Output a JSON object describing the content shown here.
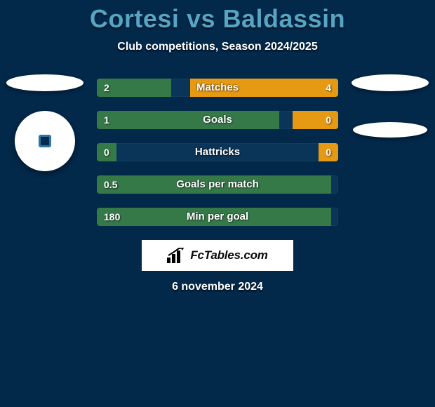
{
  "header": {
    "player_left": "Cortesi",
    "vs": "vs",
    "player_right": "Baldassin",
    "subtitle": "Club competitions, Season 2024/2025"
  },
  "colors": {
    "bar_left": "#367949",
    "bar_right": "#e69a14",
    "track": "#0a3559",
    "background": "#02284a",
    "title": "#57a4c3"
  },
  "stats": [
    {
      "label": "Matches",
      "left_val": "2",
      "right_val": "4",
      "left_pct": 30.8,
      "right_pct": 61.4
    },
    {
      "label": "Goals",
      "left_val": "1",
      "right_val": "0",
      "left_pct": 75.5,
      "right_pct": 19.0
    },
    {
      "label": "Hattricks",
      "left_val": "0",
      "right_val": "0",
      "left_pct": 8.0,
      "right_pct": 8.0
    },
    {
      "label": "Goals per match",
      "left_val": "0.5",
      "right_val": "",
      "left_pct": 97.0,
      "right_pct": 0.0
    },
    {
      "label": "Min per goal",
      "left_val": "180",
      "right_val": "",
      "left_pct": 97.0,
      "right_pct": 0.0
    }
  ],
  "brand": {
    "text": "FcTables.com"
  },
  "footer": {
    "date": "6 november 2024"
  }
}
